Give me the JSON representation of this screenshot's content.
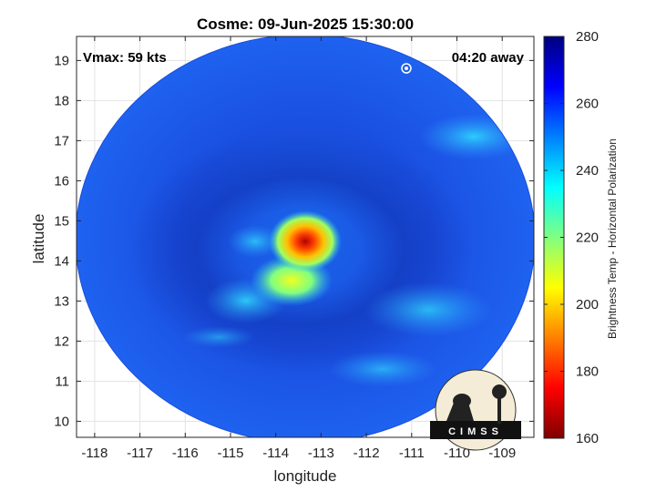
{
  "title": "Cosme: 09-Jun-2025 15:30:00",
  "annotations": {
    "vmax": "Vmax: 59 kts",
    "time_away": "04:20 away"
  },
  "axes": {
    "xlabel": "longitude",
    "ylabel": "latitude",
    "xticks": [
      -118,
      -117,
      -116,
      -115,
      -114,
      -113,
      -112,
      -111,
      -110,
      -109
    ],
    "yticks": [
      10,
      11,
      12,
      13,
      14,
      15,
      16,
      17,
      18,
      19
    ],
    "xticklabels": [
      "-118",
      "-117",
      "-116",
      "-115",
      "-114",
      "-113",
      "-112",
      "-111",
      "-110",
      "-109"
    ],
    "yticklabels": [
      "10",
      "11",
      "12",
      "13",
      "14",
      "15",
      "16",
      "17",
      "18",
      "19"
    ],
    "xlim": [
      -118.4,
      -108.3
    ],
    "ylim": [
      9.6,
      19.6
    ],
    "grid": true
  },
  "colorbar": {
    "label": "Brightness Temp - Horizontal Polarization",
    "ticks": [
      160,
      180,
      200,
      220,
      240,
      260,
      280
    ],
    "ticklabels": [
      "160",
      "180",
      "200",
      "220",
      "240",
      "260",
      "280"
    ],
    "range": [
      160,
      280
    ]
  },
  "storm": {
    "center_lon": -113.1,
    "center_lat": 14.4,
    "min_brightness_temp": 180,
    "swath_center_lon": -113.35,
    "swath_center_lat": 14.1
  },
  "logo": {
    "text": "CIMSS"
  }
}
